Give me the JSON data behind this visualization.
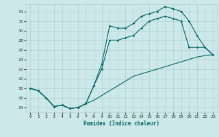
{
  "title": "",
  "xlabel": "Humidex (Indice chaleur)",
  "background_color": "#cce8e8",
  "grid_color": "#b0d0d0",
  "line_color": "#006666",
  "xlim": [
    -0.5,
    23.5
  ],
  "ylim": [
    13,
    35.5
  ],
  "yticks": [
    14,
    16,
    18,
    20,
    22,
    24,
    26,
    28,
    30,
    32,
    34
  ],
  "xticks": [
    0,
    1,
    2,
    3,
    4,
    5,
    6,
    7,
    8,
    9,
    10,
    11,
    12,
    13,
    14,
    15,
    16,
    17,
    18,
    19,
    20,
    21,
    22,
    23
  ],
  "curve1_x": [
    0,
    1,
    2,
    3,
    4,
    5,
    6,
    7,
    8,
    9,
    10,
    11,
    12,
    13,
    14,
    15,
    16,
    17,
    18,
    19,
    20,
    21,
    22,
    23
  ],
  "curve1_y": [
    18.0,
    17.5,
    16.0,
    14.2,
    14.5,
    13.8,
    14.0,
    14.8,
    18.5,
    23.0,
    31.0,
    30.5,
    30.5,
    31.5,
    33.0,
    33.5,
    34.0,
    35.0,
    34.5,
    34.0,
    32.0,
    29.0,
    26.5,
    25.0
  ],
  "curve2_x": [
    0,
    1,
    2,
    3,
    4,
    5,
    6,
    7,
    8,
    9,
    10,
    11,
    12,
    13,
    14,
    15,
    16,
    17,
    18,
    19,
    20,
    21,
    22,
    23
  ],
  "curve2_y": [
    18.0,
    17.5,
    16.0,
    14.2,
    14.5,
    13.8,
    14.0,
    14.8,
    18.5,
    22.0,
    28.0,
    28.0,
    28.5,
    29.0,
    30.5,
    32.0,
    32.5,
    33.0,
    32.5,
    32.0,
    26.5,
    26.5,
    26.5,
    25.0
  ],
  "curve3_x": [
    0,
    1,
    2,
    3,
    4,
    5,
    6,
    7,
    8,
    9,
    10,
    11,
    12,
    13,
    14,
    15,
    16,
    17,
    18,
    19,
    20,
    21,
    22,
    23
  ],
  "curve3_y": [
    18.0,
    17.5,
    16.0,
    14.2,
    14.5,
    13.8,
    14.0,
    14.8,
    15.5,
    16.5,
    17.5,
    18.5,
    19.5,
    20.5,
    21.0,
    21.5,
    22.0,
    22.5,
    23.0,
    23.5,
    24.0,
    24.5,
    24.8,
    25.0
  ]
}
